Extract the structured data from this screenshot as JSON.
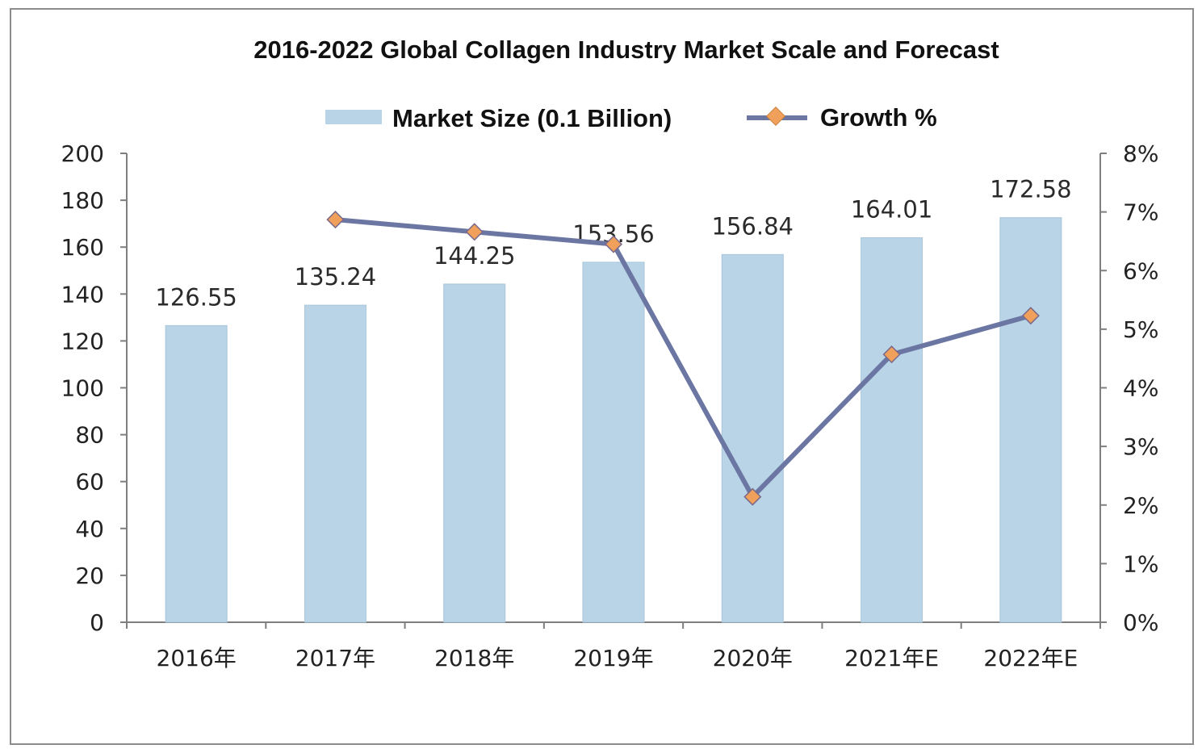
{
  "chart_data": {
    "type": "bar",
    "title": "2016-2022 Global Collagen Industry Market Scale and Forecast",
    "categories": [
      "2016年",
      "2017年",
      "2018年",
      "2019年",
      "2020年",
      "2021年E",
      "2022年E"
    ],
    "series": [
      {
        "name": "Market Size (0.1 Billion)",
        "type": "bar",
        "axis": "left",
        "color": "#b8d4e6",
        "values": [
          126.55,
          135.24,
          144.25,
          153.56,
          156.84,
          164.01,
          172.58
        ],
        "labels": [
          "126.55",
          "135.24",
          "144.25",
          "153.56",
          "156.84",
          "164.01",
          "172.58"
        ]
      },
      {
        "name": "Growth %",
        "type": "line",
        "axis": "right",
        "color": "#6b76a3",
        "marker_color": "#f0a05a",
        "values": [
          null,
          6.87,
          6.66,
          6.45,
          2.14,
          4.57,
          5.23
        ]
      }
    ],
    "y_left": {
      "ylim": [
        0,
        200
      ],
      "ticks": [
        "0",
        "20",
        "40",
        "60",
        "80",
        "100",
        "120",
        "140",
        "160",
        "180",
        "200"
      ]
    },
    "y_right": {
      "ylim": [
        0,
        8
      ],
      "ticks": [
        "0%",
        "1%",
        "2%",
        "3%",
        "4%",
        "5%",
        "6%",
        "7%",
        "8%"
      ]
    },
    "grid": false,
    "legend": "top-center"
  }
}
